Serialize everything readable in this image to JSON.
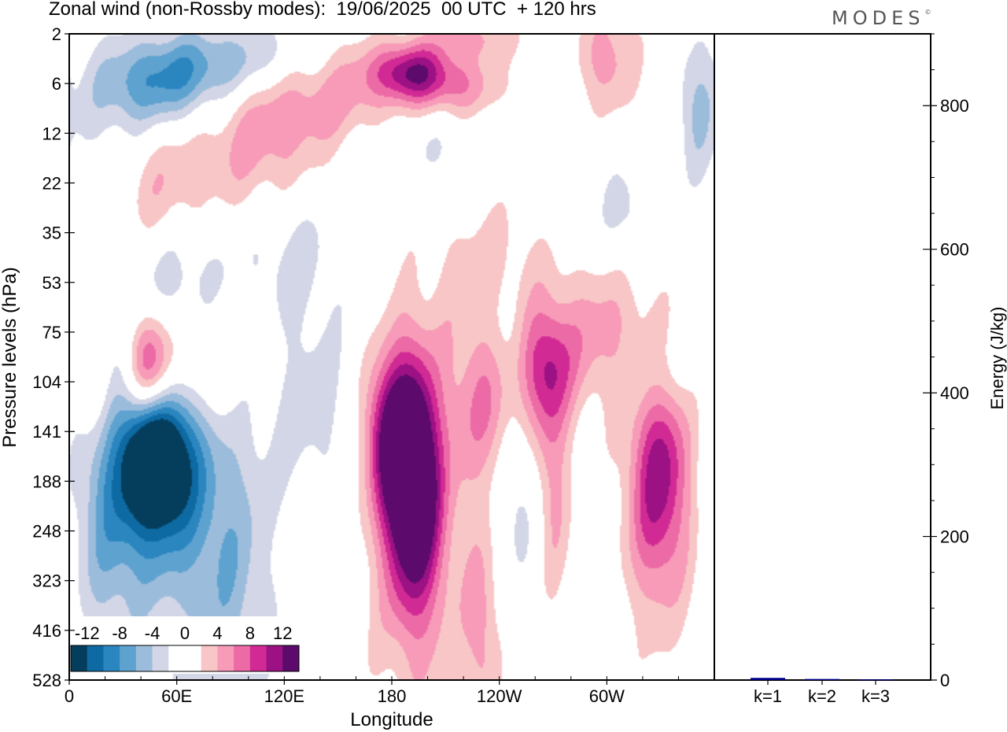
{
  "header": {
    "title": "Zonal wind (non-Rossby modes):  19/06/2025  00 UTC  + 120 hrs",
    "logo": "MODES",
    "logo_mark": "©"
  },
  "chart_data": [
    {
      "type": "heatmap",
      "title": "Zonal wind (non-Rossby modes):  19/06/2025  00 UTC  + 120 hrs",
      "xlabel": "Longitude",
      "ylabel": "Pressure levels (hPa)",
      "x_ticks": [
        {
          "lon": 0,
          "label": "0"
        },
        {
          "lon": 60,
          "label": "60E"
        },
        {
          "lon": 120,
          "label": "120E"
        },
        {
          "lon": 180,
          "label": "180"
        },
        {
          "lon": 240,
          "label": "120W"
        },
        {
          "lon": 300,
          "label": "60W"
        }
      ],
      "xlim": [
        0,
        360
      ],
      "y_levels": [
        "2",
        "6",
        "12",
        "22",
        "35",
        "53",
        "75",
        "104",
        "141",
        "188",
        "248",
        "323",
        "416",
        "528"
      ],
      "colorbar": {
        "labels": [
          "-12",
          "-8",
          "-4",
          "0",
          "4",
          "8",
          "12"
        ],
        "label_values": [
          -12,
          -8,
          -4,
          0,
          4,
          8,
          12
        ],
        "levels": [
          -14,
          -12,
          -10,
          -8,
          -6,
          -4,
          -2,
          0,
          2,
          4,
          6,
          8,
          10,
          12,
          14
        ],
        "colors": [
          "#053d5c",
          "#0e6aa2",
          "#2b86c0",
          "#5ea2cf",
          "#9cbcdc",
          "#d2d6e6",
          "#ffffff",
          "#ffffff",
          "#f8c6c6",
          "#f79bb8",
          "#ec6aa6",
          "#d12a94",
          "#9c1184",
          "#5c0a6b"
        ]
      },
      "features": [
        {
          "lon": 50,
          "level": 165,
          "value": -15,
          "sx": 14,
          "sy": 1.0
        },
        {
          "lon": 40,
          "level": 200,
          "value": -7,
          "sx": 22,
          "sy": 1.8
        },
        {
          "lon": 80,
          "level": 270,
          "value": -3.5,
          "sx": 18,
          "sy": 2.2
        },
        {
          "lon": 95,
          "level": 330,
          "value": -2.5,
          "sx": 15,
          "sy": 2.6
        },
        {
          "lon": 20,
          "level": 250,
          "value": -2.5,
          "sx": 12,
          "sy": 2.0
        },
        {
          "lon": 45,
          "level": 98,
          "value": 10,
          "sx": 9,
          "sy": 0.8
        },
        {
          "lon": 70,
          "level": 88,
          "value": 4,
          "sx": 22,
          "sy": 1.0
        },
        {
          "lon": 15,
          "level": 110,
          "value": 3.5,
          "sx": 7,
          "sy": 0.8
        },
        {
          "lon": 190,
          "level": 160,
          "value": 12,
          "sx": 10,
          "sy": 1.5
        },
        {
          "lon": 193,
          "level": 225,
          "value": 9,
          "sx": 12,
          "sy": 1.7
        },
        {
          "lon": 175,
          "level": 140,
          "value": 7,
          "sx": 9,
          "sy": 1.1
        },
        {
          "lon": 195,
          "level": 300,
          "value": 3,
          "sx": 22,
          "sy": 2.8
        },
        {
          "lon": 265,
          "level": 95,
          "value": 8,
          "sx": 12,
          "sy": 0.9
        },
        {
          "lon": 235,
          "level": 120,
          "value": 6,
          "sx": 16,
          "sy": 1.2
        },
        {
          "lon": 300,
          "level": 78,
          "value": 5,
          "sx": 18,
          "sy": 1.0
        },
        {
          "lon": 330,
          "level": 170,
          "value": 8,
          "sx": 12,
          "sy": 1.6
        },
        {
          "lon": 328,
          "level": 230,
          "value": 4,
          "sx": 14,
          "sy": 2.0
        },
        {
          "lon": 270,
          "level": 190,
          "value": 4.5,
          "sx": 7,
          "sy": 1.6
        },
        {
          "lon": 250,
          "level": 185,
          "value": -4,
          "sx": 8,
          "sy": 1.5
        },
        {
          "lon": 325,
          "level": 98,
          "value": -4,
          "sx": 14,
          "sy": 0.8
        },
        {
          "lon": 245,
          "level": 80,
          "value": -3.5,
          "sx": 10,
          "sy": 0.9
        },
        {
          "lon": 55,
          "level": 6,
          "value": -7,
          "sx": 25,
          "sy": 0.6
        },
        {
          "lon": 95,
          "level": 4,
          "value": -5,
          "sx": 30,
          "sy": 0.5
        },
        {
          "lon": 30,
          "level": 10,
          "value": -2.5,
          "sx": 20,
          "sy": 1.0
        },
        {
          "lon": 190,
          "level": 5,
          "value": 9,
          "sx": 15,
          "sy": 0.4
        },
        {
          "lon": 215,
          "level": 6.5,
          "value": 6,
          "sx": 20,
          "sy": 0.5
        },
        {
          "lon": 160,
          "level": 7,
          "value": 4,
          "sx": 25,
          "sy": 0.7
        },
        {
          "lon": 120,
          "level": 10,
          "value": 3.5,
          "sx": 28,
          "sy": 1.0
        },
        {
          "lon": 225,
          "level": 2.3,
          "value": 4,
          "sx": 18,
          "sy": 0.3
        },
        {
          "lon": 300,
          "level": 4,
          "value": 5,
          "sx": 12,
          "sy": 0.8
        },
        {
          "lon": 50,
          "level": 22,
          "value": 4,
          "sx": 18,
          "sy": 1.0
        },
        {
          "lon": 100,
          "level": 18,
          "value": 3,
          "sx": 22,
          "sy": 1.2
        },
        {
          "lon": 235,
          "level": 50,
          "value": 3,
          "sx": 25,
          "sy": 1.2
        },
        {
          "lon": 60,
          "level": 55,
          "value": -4,
          "sx": 20,
          "sy": 0.9
        },
        {
          "lon": 120,
          "level": 40,
          "value": -3,
          "sx": 25,
          "sy": 1.0
        },
        {
          "lon": 310,
          "level": 30,
          "value": -3,
          "sx": 10,
          "sy": 0.7
        },
        {
          "lon": 350,
          "level": 9,
          "value": -4,
          "sx": 8,
          "sy": 1.0
        },
        {
          "lon": 200,
          "level": 13,
          "value": -2.5,
          "sx": 30,
          "sy": 0.8
        },
        {
          "lon": 135,
          "level": 120,
          "value": -3,
          "sx": 18,
          "sy": 1.4
        },
        {
          "lon": 230,
          "level": 420,
          "value": 4.5,
          "sx": 7,
          "sy": 1.5
        }
      ]
    },
    {
      "type": "bar",
      "categories": [
        "k=1",
        "k=2",
        "k=3"
      ],
      "values": [
        3,
        1.5,
        0.8
      ],
      "ylabel": "Energy (J/kg)",
      "ylim": [
        0,
        900
      ],
      "y_ticks": [
        0,
        200,
        400,
        600,
        800
      ],
      "bar_color": "#00008b"
    }
  ]
}
